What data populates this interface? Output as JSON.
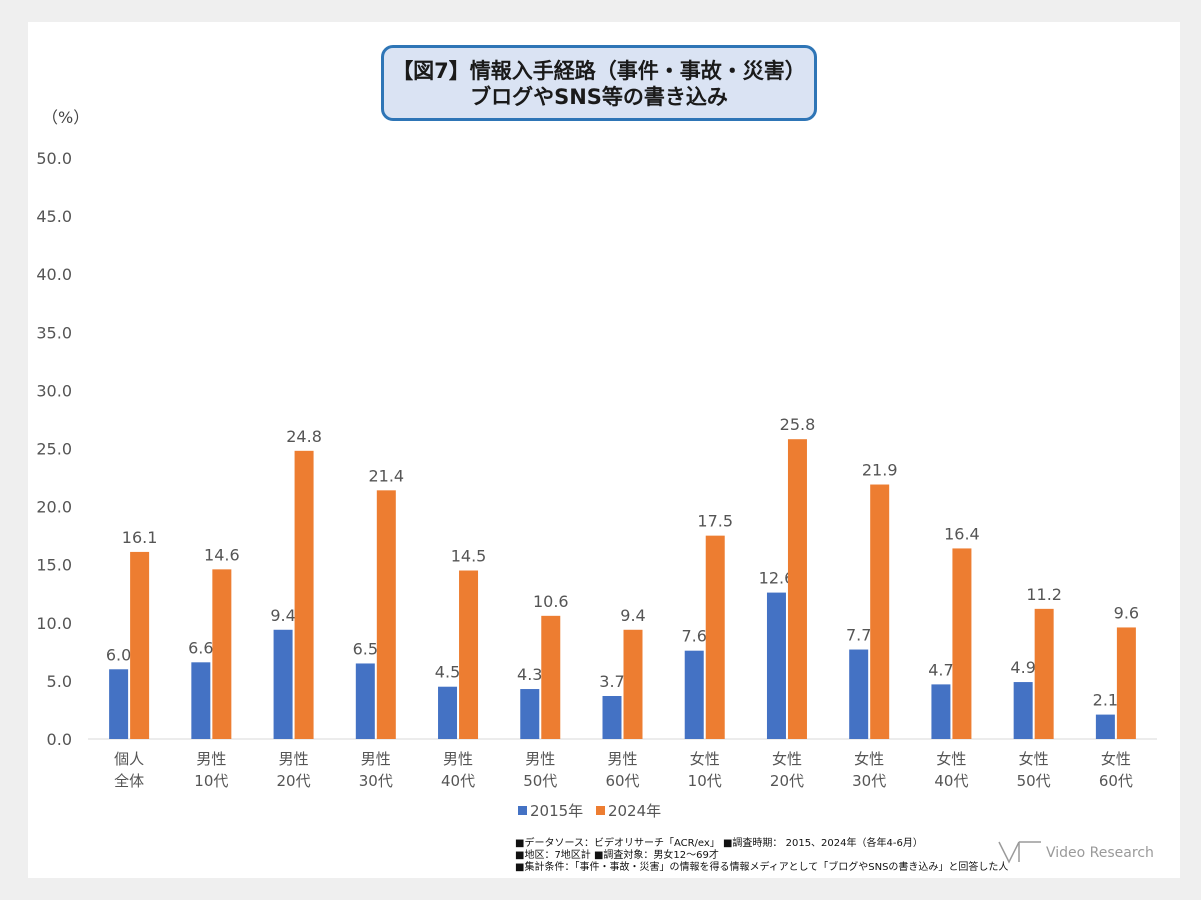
{
  "title": {
    "line1": "【図7】情報入手経路（事件・事故・災害）",
    "line2": "ブログやSNS等の書き込み"
  },
  "unit": "（%）",
  "colors": {
    "s2015": "#4472c4",
    "s2024": "#ed7d31",
    "axis": "#d9d9d9"
  },
  "chart_data": {
    "type": "bar",
    "categories": [
      [
        "個人",
        "全体"
      ],
      [
        "男性",
        "10代"
      ],
      [
        "男性",
        "20代"
      ],
      [
        "男性",
        "30代"
      ],
      [
        "男性",
        "40代"
      ],
      [
        "男性",
        "50代"
      ],
      [
        "男性",
        "60代"
      ],
      [
        "女性",
        "10代"
      ],
      [
        "女性",
        "20代"
      ],
      [
        "女性",
        "30代"
      ],
      [
        "女性",
        "40代"
      ],
      [
        "女性",
        "50代"
      ],
      [
        "女性",
        "60代"
      ]
    ],
    "series": [
      {
        "name": "2015年",
        "values": [
          6.0,
          6.6,
          9.4,
          6.5,
          4.5,
          4.3,
          3.7,
          7.6,
          12.6,
          7.7,
          4.7,
          4.9,
          2.1
        ]
      },
      {
        "name": "2024年",
        "values": [
          16.1,
          14.6,
          24.8,
          21.4,
          14.5,
          10.6,
          9.4,
          17.5,
          25.8,
          21.9,
          16.4,
          11.2,
          9.6
        ]
      }
    ],
    "ylim": [
      0,
      50
    ],
    "yticks": [
      "0.0",
      "5.0",
      "10.0",
      "15.0",
      "20.0",
      "25.0",
      "30.0",
      "35.0",
      "40.0",
      "45.0",
      "50.0"
    ],
    "grid": false,
    "legend": "bottom"
  },
  "footnotes": [
    "■データソース：ビデオリサーチ「ACR/ex」 ■調査時期： 2015、2024年（各年4-6月）",
    "■地区：7地区計 ■調査対象：男女12～69才",
    "■集計条件：「事件・事故・災害」の情報を得る情報メディアとして「ブログやSNSの書き込み」と回答した人"
  ],
  "brand": "Video Research"
}
